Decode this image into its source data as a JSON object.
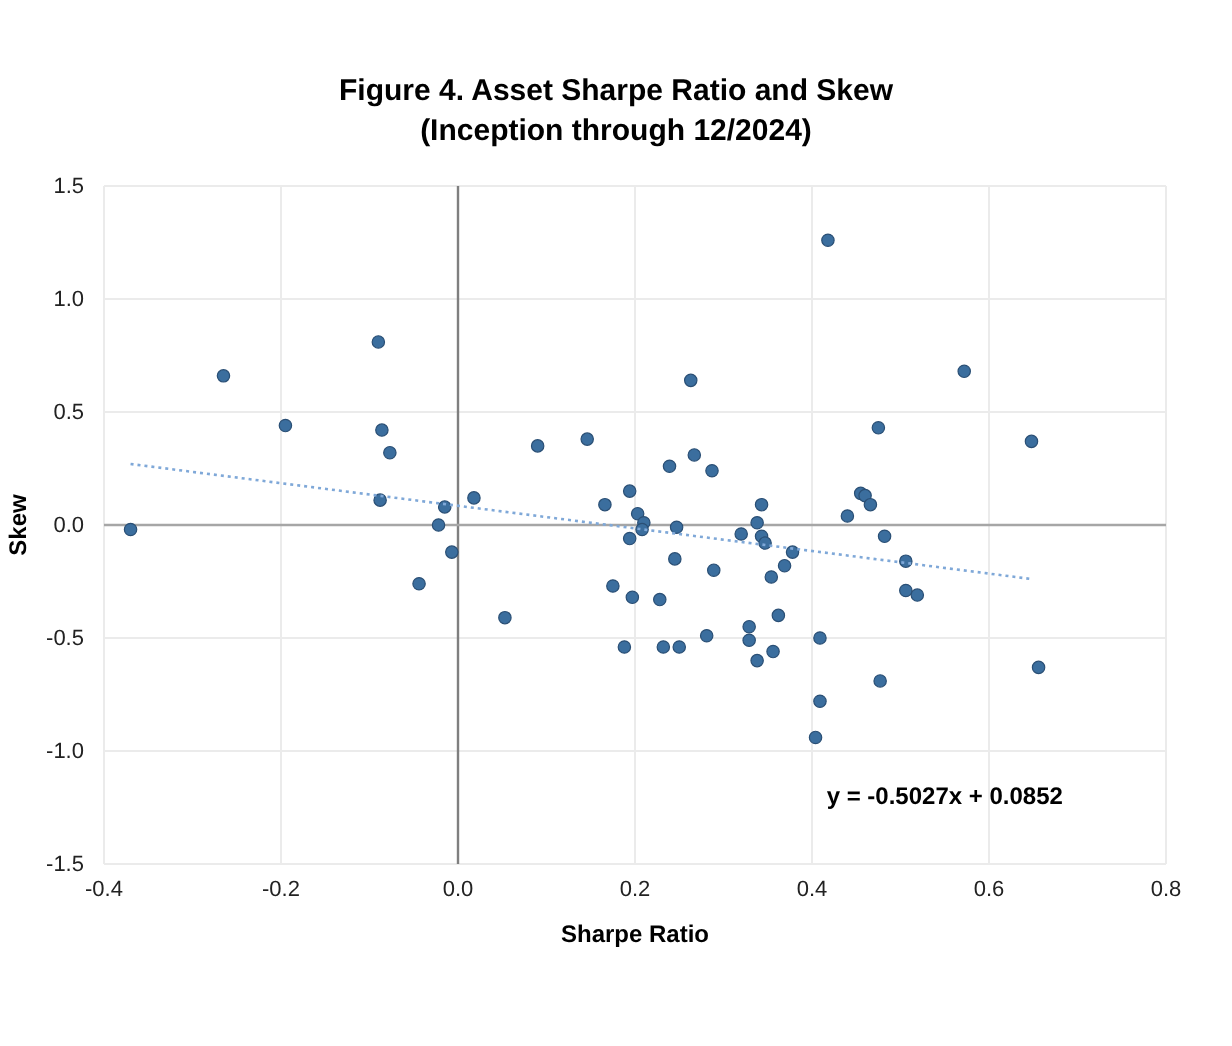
{
  "chart_data": {
    "type": "scatter",
    "title": "Figure 4. Asset Sharpe Ratio and Skew",
    "subtitle": "(Inception through 12/2024)",
    "xlabel": "Sharpe Ratio",
    "ylabel": "Skew",
    "xlim": [
      -0.4,
      0.8
    ],
    "xticks": [
      -0.4,
      -0.2,
      {
        "value": 0,
        "label": "0.0"
      },
      0.2,
      0.4,
      0.6,
      0.8
    ],
    "ylim": [
      -1.5,
      1.5
    ],
    "yticks": [
      -1.5,
      {
        "value": -1,
        "label": "-1.0"
      },
      -0.5,
      {
        "value": 0,
        "label": "0.0"
      },
      0.5,
      {
        "value": 1,
        "label": "1.0"
      },
      1.5
    ],
    "grid": true,
    "ref_lines": [
      {
        "axis": "x",
        "value": 0,
        "color": "#7f7f7f"
      },
      {
        "axis": "y",
        "value": 0,
        "color": "#a6a6a6"
      }
    ],
    "annotations": [
      "y = -0.5027x + 0.0852"
    ],
    "series": [
      {
        "marker": "circle",
        "color": "#3b6e9e",
        "x": [
          -0.37,
          -0.265,
          -0.195,
          -0.09,
          -0.086,
          -0.088,
          -0.077,
          -0.015,
          -0.022,
          -0.007,
          -0.044,
          0.018,
          0.053,
          0.09,
          0.146,
          0.194,
          0.166,
          0.203,
          0.21,
          0.208,
          0.194,
          0.175,
          0.197,
          0.188,
          0.418,
          0.263,
          0.572,
          0.475,
          0.648,
          0.267,
          0.239,
          0.287,
          0.455,
          0.46,
          0.466,
          0.343,
          0.44,
          0.338,
          0.247,
          0.32,
          0.343,
          0.347,
          0.482,
          0.378,
          0.369,
          0.354,
          0.245,
          0.289,
          0.506,
          0.506,
          0.519,
          0.228,
          0.362,
          0.329,
          0.329,
          0.281,
          0.409,
          0.232,
          0.25,
          0.356,
          0.338,
          0.656,
          0.477,
          0.409,
          0.404
        ],
        "values": [
          -0.02,
          0.66,
          0.44,
          0.81,
          0.42,
          0.11,
          0.32,
          0.08,
          0.0,
          -0.12,
          -0.26,
          0.12,
          -0.41,
          0.35,
          0.38,
          0.15,
          0.09,
          0.05,
          0.01,
          -0.02,
          -0.06,
          -0.27,
          -0.32,
          -0.54,
          1.26,
          0.64,
          0.68,
          0.43,
          0.37,
          0.31,
          0.26,
          0.24,
          0.14,
          0.13,
          0.09,
          0.09,
          0.04,
          0.01,
          -0.01,
          -0.04,
          -0.05,
          -0.08,
          -0.05,
          -0.12,
          -0.18,
          -0.23,
          -0.15,
          -0.2,
          -0.16,
          -0.29,
          -0.31,
          -0.33,
          -0.4,
          -0.45,
          -0.51,
          -0.49,
          -0.5,
          -0.54,
          -0.54,
          -0.56,
          -0.6,
          -0.63,
          -0.69,
          -0.78,
          -0.94
        ]
      },
      {
        "type": "line",
        "color": "#7fa8d8",
        "line_style": "dotted",
        "x": [
          -0.37,
          0.65
        ],
        "values": [
          0.27,
          -0.24
        ]
      }
    ]
  }
}
